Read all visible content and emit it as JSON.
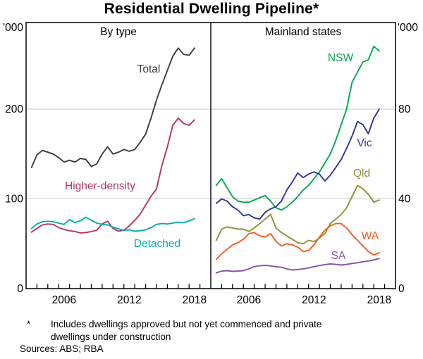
{
  "footnote": {
    "marker": "*",
    "line1": "Includes dwellings approved but not yet commenced and private",
    "line2": "dwellings under construction",
    "sources": "Sources: ABS; RBA"
  },
  "chart_data": {
    "type": "line",
    "title": "Residential Dwelling Pipeline*",
    "unit": "'000 dwellings",
    "xlim": [
      2003,
      2020
    ],
    "x_year_labels": [
      2006,
      2012,
      2018
    ],
    "grid": true,
    "legend_position": "inline-labels",
    "x": [
      2003.5,
      2004,
      2004.5,
      2005,
      2005.5,
      2006,
      2006.5,
      2007,
      2007.5,
      2008,
      2008.5,
      2009,
      2009.5,
      2010,
      2010.5,
      2011,
      2011.5,
      2012,
      2012.5,
      2013,
      2013.5,
      2014,
      2014.5,
      2015,
      2015.5,
      2016,
      2016.5,
      2017,
      2017.5,
      2018,
      2018.5
    ],
    "panels": [
      {
        "title": "By type",
        "ylabel": "'000",
        "ylim": [
          0,
          300
        ],
        "yticks": [
          0,
          100,
          200
        ],
        "gridlines": [
          100,
          200
        ],
        "series": [
          {
            "name": "Total",
            "color": "#3d3d3d",
            "values": [
              135,
              149,
              154,
              152,
              150,
              146,
              141,
              143,
              141,
              145,
              144,
              136,
              139,
              150,
              158,
              150,
              152,
              155,
              153,
              155,
              163,
              172,
              190,
              210,
              227,
              243,
              259,
              268,
              261,
              260,
              268
            ]
          },
          {
            "name": "Higher-density",
            "color": "#b23560",
            "values": [
              63,
              67,
              71,
              72,
              71.5,
              68,
              66,
              64.5,
              63.5,
              62,
              62.5,
              63.5,
              65,
              72,
              75,
              67,
              64,
              65,
              70,
              76,
              83,
              93,
              103,
              111,
              137,
              158,
              182,
              190,
              184,
              182,
              188
            ]
          },
          {
            "name": "Detached",
            "color": "#00b0ac",
            "values": [
              67,
              72,
              74.5,
              75,
              74.5,
              73,
              71.5,
              77,
              73.5,
              75.5,
              79.5,
              76,
              73,
              71.5,
              71,
              68.5,
              66.5,
              65,
              65.5,
              64,
              64.5,
              65.5,
              68,
              71.5,
              72.5,
              72,
              73,
              74,
              73.5,
              75.5,
              78
            ]
          }
        ]
      },
      {
        "title": "Mainland states",
        "ylabel": "'000",
        "ylim": [
          0,
          120
        ],
        "yticks": [
          0,
          40,
          80
        ],
        "gridlines": [
          40,
          80
        ],
        "series": [
          {
            "name": "NSW",
            "color": "#00a94e",
            "values": [
              46,
              49,
              45,
              41,
              39,
              38.5,
              38.5,
              39.5,
              40.5,
              41.5,
              39,
              36,
              35,
              36.5,
              38.5,
              41,
              44,
              46,
              49,
              52,
              56,
              60,
              66,
              73,
              80,
              92,
              96.5,
              101,
              102,
              108,
              106
            ]
          },
          {
            "name": "Vic",
            "color": "#2c34a0",
            "values": [
              38,
              40,
              39,
              36.5,
              35,
              32.5,
              33,
              31.5,
              31,
              34,
              35.5,
              36.5,
              39,
              44,
              47.5,
              51.5,
              49.5,
              51,
              52,
              51,
              48,
              50.5,
              54,
              57.5,
              62.5,
              68,
              74.5,
              73,
              69,
              76,
              80
            ]
          },
          {
            "name": "Qld",
            "color": "#8e9134",
            "values": [
              21.5,
              26.5,
              27.5,
              27,
              26.5,
              26.5,
              25.5,
              27,
              29,
              31,
              33,
              27,
              25,
              23.5,
              22,
              20.5,
              20,
              21.5,
              21,
              22.5,
              24.5,
              29,
              31,
              33,
              36,
              41,
              46,
              44.5,
              42,
              38.5,
              39.5
            ]
          },
          {
            "name": "WA",
            "color": "#f75b20",
            "values": [
              13,
              15.5,
              17.5,
              19.5,
              20.5,
              22,
              24.5,
              25,
              23.5,
              23,
              24.5,
              21,
              19,
              20,
              19.5,
              18.5,
              16.5,
              17,
              19.5,
              23,
              26,
              28,
              29,
              29,
              27,
              24,
              21.5,
              19,
              16.5,
              15,
              16
            ]
          },
          {
            "name": "SA",
            "color": "#8951a1",
            "values": [
              7,
              7.8,
              8,
              7.7,
              7.8,
              8,
              8.8,
              9.8,
              10.2,
              10.4,
              10.1,
              9.8,
              9.5,
              8.8,
              8.3,
              8.5,
              8.8,
              9.2,
              9.8,
              10.3,
              10.7,
              11,
              10.8,
              10.5,
              10.8,
              11.2,
              11.5,
              12,
              12.3,
              12.8,
              13.4
            ]
          }
        ]
      }
    ]
  }
}
